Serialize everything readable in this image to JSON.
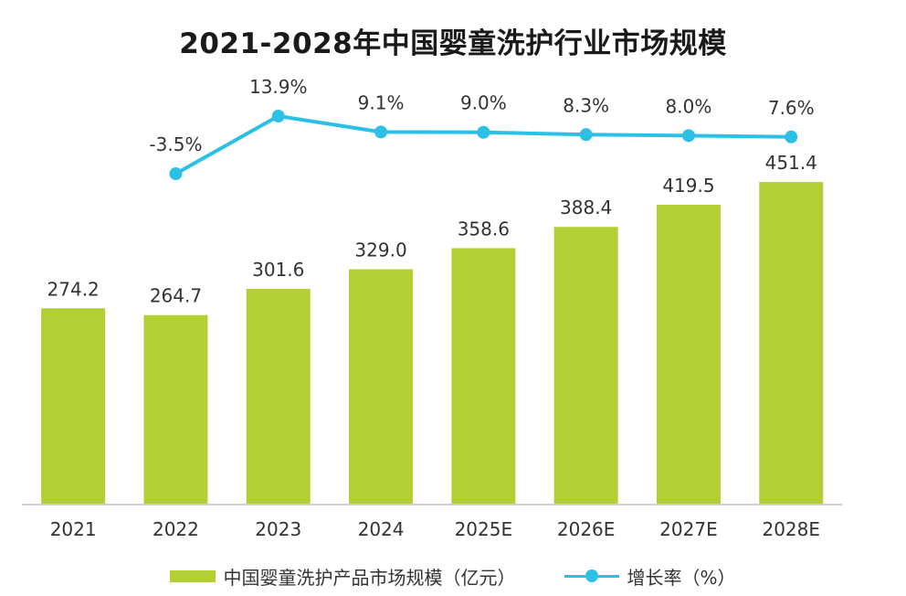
{
  "chart_data": {
    "type": "bar",
    "title": "2021-2028年中国婴童洗护行业市场规模",
    "categories": [
      "2021",
      "2022",
      "2023",
      "2024",
      "2025E",
      "2026E",
      "2027E",
      "2028E"
    ],
    "series": [
      {
        "name": "中国婴童洗护产品市场规模（亿元）",
        "type": "bar",
        "values": [
          274.2,
          264.7,
          301.6,
          329.0,
          358.6,
          388.4,
          419.5,
          451.4
        ],
        "labels": [
          "274.2",
          "264.7",
          "301.6",
          "329.0",
          "358.6",
          "388.4",
          "419.5",
          "451.4"
        ]
      },
      {
        "name": "增长率（%）",
        "type": "line",
        "values": [
          null,
          -3.5,
          13.9,
          9.1,
          9.0,
          8.3,
          8.0,
          7.6
        ],
        "labels": [
          "",
          "-3.5%",
          "13.9%",
          "9.1%",
          "9.0%",
          "8.3%",
          "8.0%",
          "7.6%"
        ]
      }
    ],
    "legend_position": "bottom",
    "grid": false
  },
  "colors": {
    "bar": "#b2cf34",
    "line": "#2cc0e6",
    "axis": "#d0d0d0",
    "text": "#333333"
  }
}
